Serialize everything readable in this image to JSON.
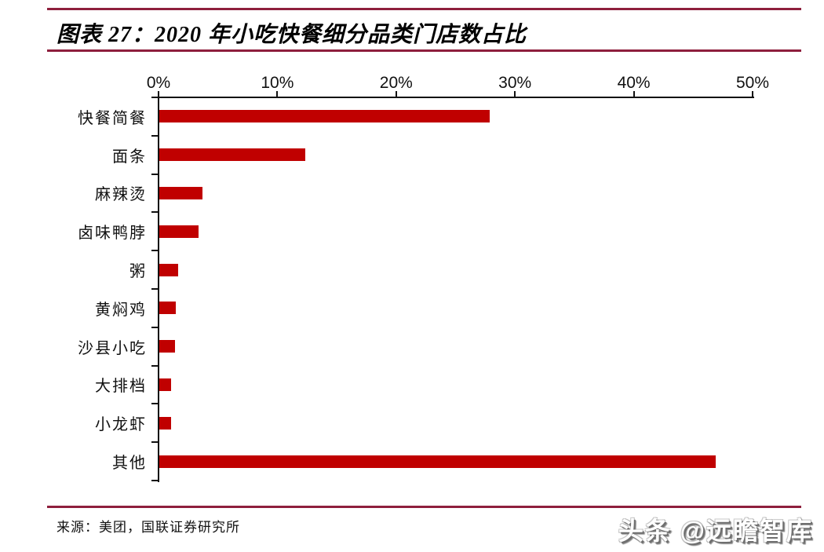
{
  "header": {
    "title": "图表 27：2020 年小吃快餐细分品类门店数占比",
    "rule_color": "#8E1F3D"
  },
  "chart_data": {
    "type": "bar",
    "orientation": "horizontal",
    "title": "图表 27：2020 年小吃快餐细分品类门店数占比",
    "categories": [
      "快餐简餐",
      "面条",
      "麻辣烫",
      "卤味鸭脖",
      "粥",
      "黄焖鸡",
      "沙县小吃",
      "大排档",
      "小龙虾",
      "其他"
    ],
    "values": [
      27.8,
      12.3,
      3.6,
      3.3,
      1.6,
      1.4,
      1.3,
      1.0,
      1.0,
      46.8
    ],
    "unit": "%",
    "xlabel": "",
    "ylabel": "",
    "xlim": [
      0,
      50
    ],
    "x_ticks": [
      0,
      10,
      20,
      30,
      40,
      50
    ],
    "x_tick_labels": [
      "0%",
      "10%",
      "20%",
      "30%",
      "40%",
      "50%"
    ],
    "value_axis_position": "top",
    "grid": false,
    "legend": false,
    "bar_color": "#C00000"
  },
  "footer": {
    "source": "来源：美团，国联证券研究所",
    "watermark": "头条 @远瞻智库"
  }
}
